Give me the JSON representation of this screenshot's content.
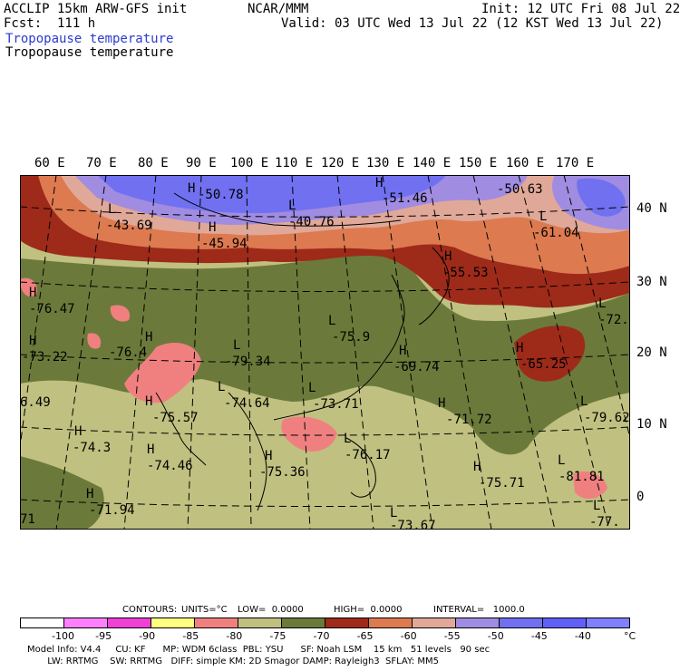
{
  "header": {
    "model": "ACCLIP 15km ARW-GFS init",
    "org": "NCAR/MMM",
    "init": "Init: 12 UTC Fri 08 Jul 22",
    "fcst": "Fcst:  111 h",
    "valid": "Valid: 03 UTC Wed 13 Jul 22 (12 KST Wed 13 Jul 22)",
    "field_blue": "Tropopause temperature",
    "field_black": "Tropopause temperature"
  },
  "lon_labels": [
    "60 E",
    "70 E",
    "80 E",
    "90 E",
    "100 E",
    "110 E",
    "120 E",
    "130 E",
    "140 E",
    "150 E",
    "160 E",
    "170 E"
  ],
  "lat_labels": [
    "40 N",
    "30 N",
    "20 N",
    "10 N",
    "0"
  ],
  "extrema": [
    {
      "type": "H",
      "value": "-50.78"
    },
    {
      "type": "H",
      "value": "-51.46"
    },
    {
      "type": "L",
      "value": "-50.63"
    },
    {
      "type": "L",
      "value": "-43.69"
    },
    {
      "type": "L",
      "value": "-40.76"
    },
    {
      "type": "H",
      "value": "-45.94"
    },
    {
      "type": "L",
      "value": "-61.04"
    },
    {
      "type": "H",
      "value": "-55.53"
    },
    {
      "type": "H",
      "value": "-76.47"
    },
    {
      "type": "L",
      "value": "-72."
    },
    {
      "type": "H",
      "value": "-73.22"
    },
    {
      "type": "H",
      "value": "-76.4"
    },
    {
      "type": "L",
      "value": "-79.34"
    },
    {
      "type": "L",
      "value": "-75.9"
    },
    {
      "type": "H",
      "value": "-69.74"
    },
    {
      "type": "H",
      "value": "-65.25"
    },
    {
      "type": "L",
      "value": "6.49"
    },
    {
      "type": "H",
      "value": "-75.57"
    },
    {
      "type": "L",
      "value": "-74.64"
    },
    {
      "type": "L",
      "value": "-73.71"
    },
    {
      "type": "H",
      "value": "-71.72"
    },
    {
      "type": "L",
      "value": "-79.62"
    },
    {
      "type": "H",
      "value": "-74.3"
    },
    {
      "type": "H",
      "value": "-74.46"
    },
    {
      "type": "H",
      "value": "-75.36"
    },
    {
      "type": "L",
      "value": "-76.17"
    },
    {
      "type": "H",
      "value": "-75.71"
    },
    {
      "type": "L",
      "value": "-81.81"
    },
    {
      "type": "H",
      "value": "-71.94"
    },
    {
      "type": "L",
      "value": "-77."
    },
    {
      "type": "L",
      "value": "-73.67"
    },
    {
      "type": "L",
      "value": "71"
    }
  ],
  "contours_line": {
    "contours": "CONTOURS:",
    "units": "UNITS=°C",
    "low": "LOW=  0.0000",
    "high": "HIGH=  0.0000",
    "interval": "INTERVAL=   1000.0"
  },
  "colorbar": {
    "colors": [
      "#ffffff",
      "#ff80ff",
      "#f040d8",
      "#ffff80",
      "#f08080",
      "#c0c080",
      "#6b7a3a",
      "#9e2a1a",
      "#dd7a50",
      "#e0a898",
      "#a08ce0",
      "#7070f0",
      "#6060f8",
      "#8080ff"
    ],
    "ticks": [
      "-100",
      "-95",
      "-90",
      "-85",
      "-80",
      "-75",
      "-70",
      "-65",
      "-60",
      "-55",
      "-50",
      "-45",
      "-40"
    ],
    "unit": "°C"
  },
  "footer": {
    "line1": "Model Info: V4.4     CU: KF      MP: WDM 6class  PBL: YSU      SF: Noah LSM    15 km   51 levels   90 sec",
    "line2": "       LW: RRTMG    SW: RRTMG   DIFF: simple KM: 2D Smagor DAMP: Rayleigh3  SFLAY: MM5"
  }
}
